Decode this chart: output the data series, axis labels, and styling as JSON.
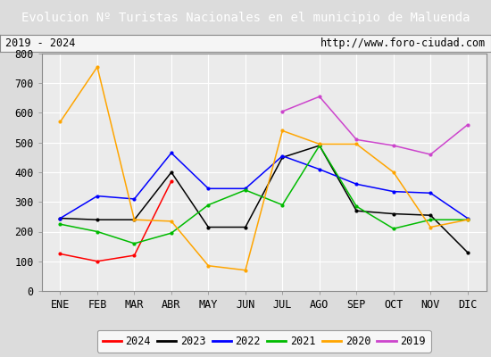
{
  "title": "Evolucion Nº Turistas Nacionales en el municipio de Maluenda",
  "subtitle_left": "2019 - 2024",
  "subtitle_right": "http://www.foro-ciudad.com",
  "x_labels": [
    "ENE",
    "FEB",
    "MAR",
    "ABR",
    "MAY",
    "JUN",
    "JUL",
    "AGO",
    "SEP",
    "OCT",
    "NOV",
    "DIC"
  ],
  "ylim": [
    0,
    800
  ],
  "yticks": [
    0,
    100,
    200,
    300,
    400,
    500,
    600,
    700,
    800
  ],
  "series": {
    "2024": {
      "color": "#ff0000",
      "values": [
        125,
        100,
        120,
        370,
        null,
        null,
        null,
        null,
        null,
        null,
        null,
        null
      ]
    },
    "2023": {
      "color": "#000000",
      "values": [
        245,
        240,
        240,
        400,
        215,
        215,
        450,
        490,
        270,
        260,
        255,
        130
      ]
    },
    "2022": {
      "color": "#0000ff",
      "values": [
        245,
        320,
        310,
        465,
        345,
        345,
        455,
        410,
        360,
        335,
        330,
        245
      ]
    },
    "2021": {
      "color": "#00bb00",
      "values": [
        225,
        200,
        160,
        195,
        290,
        340,
        290,
        490,
        285,
        210,
        240,
        240
      ]
    },
    "2020": {
      "color": "#ffa500",
      "values": [
        570,
        755,
        240,
        235,
        85,
        70,
        540,
        495,
        495,
        400,
        215,
        240
      ]
    },
    "2019": {
      "color": "#cc44cc",
      "values": [
        null,
        null,
        null,
        null,
        null,
        null,
        605,
        655,
        510,
        490,
        460,
        560
      ]
    }
  },
  "title_bg_color": "#5b8dd9",
  "title_text_color": "#ffffff",
  "plot_bg_color": "#ebebeb",
  "grid_color": "#ffffff",
  "border_color": "#888888",
  "outer_bg_color": "#dcdcdc",
  "subtitle_bg_color": "#f5f5f5",
  "title_fontsize": 10,
  "label_fontsize": 8.5,
  "tick_fontsize": 8.5,
  "legend_fontsize": 8.5
}
